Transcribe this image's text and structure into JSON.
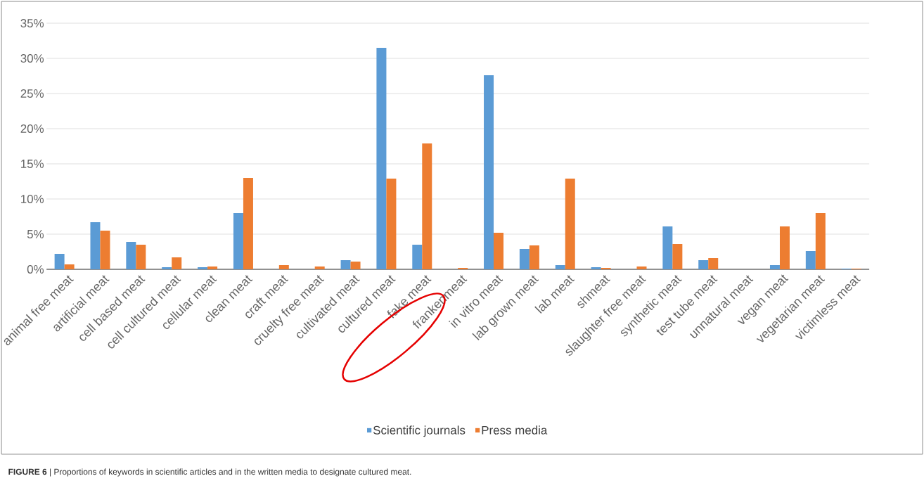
{
  "chart_data": {
    "type": "bar",
    "categories": [
      "animal free meat",
      "artificial meat",
      "cell based meat",
      "cell cultured meat",
      "cellular meat",
      "clean meat",
      "craft meat",
      "cruelty free meat",
      "cultivated meat",
      "cultured meat",
      "fake meat",
      "frankenmeat",
      "in vitro meat",
      "lab grown meat",
      "lab meat",
      "shmeat",
      "slaughter free meat",
      "synthetic meat",
      "test tube meat",
      "unnatural meat",
      "vegan meat",
      "vegetarian meat",
      "victimless meat"
    ],
    "series": [
      {
        "name": "Scientific journals",
        "color": "#5b9bd5",
        "values": [
          2.2,
          6.7,
          3.9,
          0.3,
          0.3,
          8.0,
          0,
          0,
          1.3,
          31.5,
          3.5,
          0,
          27.6,
          2.9,
          0.6,
          0.3,
          0,
          6.1,
          1.3,
          0,
          0.6,
          2.6,
          0.1
        ]
      },
      {
        "name": "Press media",
        "color": "#ed7d31",
        "values": [
          0.7,
          5.5,
          3.5,
          1.7,
          0.4,
          13.0,
          0.6,
          0.4,
          1.1,
          12.9,
          17.9,
          0.2,
          5.2,
          3.4,
          12.9,
          0.2,
          0.4,
          3.6,
          1.6,
          0,
          6.1,
          8.0,
          0.1
        ]
      }
    ],
    "ylim": [
      0,
      35
    ],
    "yticks": [
      {
        "value": 0,
        "label": "0%"
      },
      {
        "value": 5,
        "label": "5%"
      },
      {
        "value": 10,
        "label": "10%"
      },
      {
        "value": 15,
        "label": "15%"
      },
      {
        "value": 20,
        "label": "20%"
      },
      {
        "value": 25,
        "label": "25%"
      },
      {
        "value": 30,
        "label": "30%"
      },
      {
        "value": 35,
        "label": "35%"
      }
    ],
    "grid": "y",
    "legend": "bottom",
    "annotations": [
      "**FIGURE 6** | Proportions of keywords in scientific articles and in the written media to designate cultured meat."
    ]
  }
}
